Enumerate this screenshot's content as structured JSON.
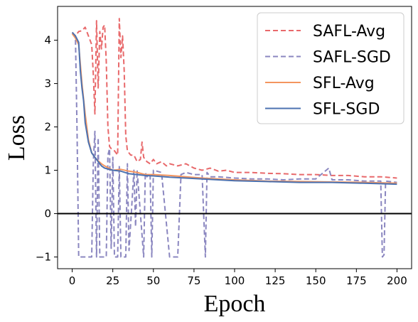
{
  "chart_data": {
    "type": "line",
    "title": "",
    "xlabel": "Epoch",
    "ylabel": "Loss",
    "xlim": [
      -9,
      209
    ],
    "ylim": [
      -1.27,
      4.78
    ],
    "xticks": [
      0,
      25,
      50,
      75,
      100,
      125,
      150,
      175,
      200
    ],
    "yticks": [
      -1,
      0,
      1,
      2,
      3,
      4
    ],
    "ytick_labels": [
      "−1",
      "0",
      "1",
      "2",
      "3",
      "4"
    ],
    "hline": 0,
    "grid": false,
    "legend_position": "top-right",
    "series": [
      {
        "name": "SAFL-Avg",
        "color": "#e8696b",
        "style": "dashed",
        "points": [
          [
            0,
            4.18
          ],
          [
            2,
            4.1
          ],
          [
            4,
            4.2
          ],
          [
            6,
            4.22
          ],
          [
            8,
            4.3
          ],
          [
            10,
            4.1
          ],
          [
            12,
            3.9
          ],
          [
            13,
            3.2
          ],
          [
            14,
            2.3
          ],
          [
            15,
            4.45
          ],
          [
            16,
            2.9
          ],
          [
            17,
            4.2
          ],
          [
            18,
            3.8
          ],
          [
            19,
            4.3
          ],
          [
            20,
            4.35
          ],
          [
            21,
            3.5
          ],
          [
            22,
            2.0
          ],
          [
            23,
            1.55
          ],
          [
            24,
            1.5
          ],
          [
            26,
            1.45
          ],
          [
            28,
            1.35
          ],
          [
            29,
            4.5
          ],
          [
            30,
            3.6
          ],
          [
            31,
            4.1
          ],
          [
            32,
            3.3
          ],
          [
            33,
            1.8
          ],
          [
            34,
            1.45
          ],
          [
            36,
            1.35
          ],
          [
            38,
            1.35
          ],
          [
            40,
            1.2
          ],
          [
            42,
            1.25
          ],
          [
            43,
            1.65
          ],
          [
            44,
            1.3
          ],
          [
            46,
            1.2
          ],
          [
            48,
            1.15
          ],
          [
            50,
            1.25
          ],
          [
            52,
            1.15
          ],
          [
            55,
            1.2
          ],
          [
            58,
            1.1
          ],
          [
            60,
            1.15
          ],
          [
            65,
            1.1
          ],
          [
            70,
            1.15
          ],
          [
            75,
            1.05
          ],
          [
            80,
            1.0
          ],
          [
            85,
            1.05
          ],
          [
            90,
            0.98
          ],
          [
            95,
            1.0
          ],
          [
            100,
            0.95
          ],
          [
            110,
            0.95
          ],
          [
            120,
            0.93
          ],
          [
            130,
            0.92
          ],
          [
            140,
            0.9
          ],
          [
            150,
            0.9
          ],
          [
            160,
            0.88
          ],
          [
            170,
            0.88
          ],
          [
            180,
            0.85
          ],
          [
            190,
            0.85
          ],
          [
            200,
            0.82
          ]
        ]
      },
      {
        "name": "SAFL-SGD",
        "color": "#8b87c0",
        "style": "dashed",
        "points": [
          [
            0,
            4.15
          ],
          [
            2,
            4.1
          ],
          [
            3,
            1.9
          ],
          [
            4,
            -1.0
          ],
          [
            8,
            -1.0
          ],
          [
            12,
            -1.0
          ],
          [
            13,
            1.2
          ],
          [
            14,
            1.9
          ],
          [
            15,
            -1.0
          ],
          [
            16,
            1.75
          ],
          [
            17,
            -1.0
          ],
          [
            21,
            -1.0
          ],
          [
            22,
            1.35
          ],
          [
            23,
            1.5
          ],
          [
            24,
            -0.8
          ],
          [
            25,
            1.3
          ],
          [
            26,
            -1.0
          ],
          [
            28,
            -1.0
          ],
          [
            29,
            1.1
          ],
          [
            30,
            -1.0
          ],
          [
            33,
            -1.0
          ],
          [
            34,
            1.15
          ],
          [
            35,
            -0.85
          ],
          [
            38,
            1.0
          ],
          [
            39,
            -0.3
          ],
          [
            40,
            1.0
          ],
          [
            44,
            -1.0
          ],
          [
            45,
            0.95
          ],
          [
            46,
            0.85
          ],
          [
            48,
            0.9
          ],
          [
            49,
            -1.0
          ],
          [
            50,
            1.0
          ],
          [
            55,
            0.95
          ],
          [
            60,
            -1.0
          ],
          [
            65,
            -1.0
          ],
          [
            67,
            0.9
          ],
          [
            70,
            0.95
          ],
          [
            75,
            0.9
          ],
          [
            80,
            0.9
          ],
          [
            82,
            -1.0
          ],
          [
            83,
            0.95
          ],
          [
            85,
            0.85
          ],
          [
            90,
            0.85
          ],
          [
            100,
            0.82
          ],
          [
            110,
            0.8
          ],
          [
            120,
            0.8
          ],
          [
            130,
            0.78
          ],
          [
            140,
            0.8
          ],
          [
            150,
            0.8
          ],
          [
            158,
            1.05
          ],
          [
            160,
            0.78
          ],
          [
            170,
            0.78
          ],
          [
            180,
            0.75
          ],
          [
            190,
            0.75
          ],
          [
            191,
            -1.0
          ],
          [
            192,
            -0.95
          ],
          [
            193,
            0.75
          ],
          [
            200,
            0.72
          ]
        ]
      },
      {
        "name": "SFL-Avg",
        "color": "#f4955f",
        "style": "solid",
        "points": [
          [
            0,
            4.15
          ],
          [
            2,
            4.05
          ],
          [
            4,
            3.9
          ],
          [
            6,
            3.0
          ],
          [
            8,
            2.3
          ],
          [
            10,
            1.7
          ],
          [
            12,
            1.4
          ],
          [
            15,
            1.25
          ],
          [
            18,
            1.15
          ],
          [
            20,
            1.1
          ],
          [
            25,
            1.0
          ],
          [
            30,
            1.02
          ],
          [
            35,
            0.98
          ],
          [
            40,
            0.95
          ],
          [
            45,
            0.9
          ],
          [
            50,
            0.9
          ],
          [
            60,
            0.88
          ],
          [
            70,
            0.85
          ],
          [
            80,
            0.82
          ],
          [
            90,
            0.8
          ],
          [
            100,
            0.78
          ],
          [
            120,
            0.75
          ],
          [
            140,
            0.74
          ],
          [
            160,
            0.73
          ],
          [
            180,
            0.72
          ],
          [
            200,
            0.7
          ]
        ]
      },
      {
        "name": "SFL-SGD",
        "color": "#4c72b0",
        "style": "solid",
        "points": [
          [
            0,
            4.18
          ],
          [
            2,
            4.1
          ],
          [
            4,
            3.95
          ],
          [
            5,
            3.3
          ],
          [
            6,
            2.9
          ],
          [
            7,
            2.6
          ],
          [
            8,
            2.1
          ],
          [
            10,
            1.65
          ],
          [
            12,
            1.4
          ],
          [
            14,
            1.3
          ],
          [
            16,
            1.2
          ],
          [
            18,
            1.1
          ],
          [
            20,
            1.05
          ],
          [
            25,
            1.0
          ],
          [
            30,
            0.98
          ],
          [
            35,
            0.92
          ],
          [
            40,
            0.9
          ],
          [
            45,
            0.88
          ],
          [
            50,
            0.87
          ],
          [
            60,
            0.84
          ],
          [
            70,
            0.82
          ],
          [
            80,
            0.8
          ],
          [
            90,
            0.78
          ],
          [
            100,
            0.76
          ],
          [
            120,
            0.74
          ],
          [
            140,
            0.72
          ],
          [
            160,
            0.72
          ],
          [
            180,
            0.7
          ],
          [
            200,
            0.68
          ]
        ]
      }
    ]
  }
}
